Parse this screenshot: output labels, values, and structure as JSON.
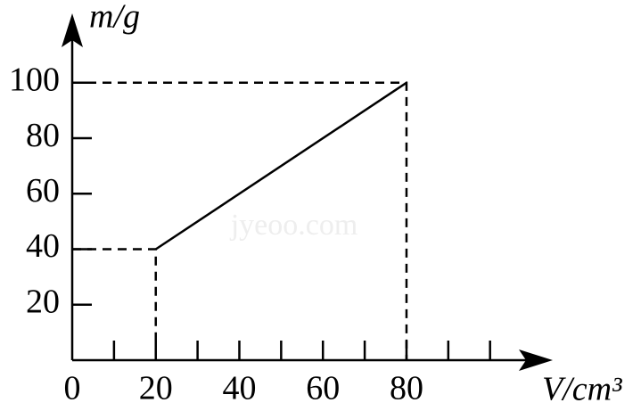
{
  "chart_data": {
    "type": "line",
    "xlabel": "V/cm³",
    "ylabel": "m/g",
    "watermark": "jyeoo.com",
    "x": [
      20,
      80
    ],
    "series": [
      {
        "name": "m",
        "color": "#000000",
        "values": [
          40,
          100
        ]
      }
    ],
    "xlim": [
      0,
      115
    ],
    "ylim": [
      0,
      125
    ],
    "xticks": [
      0,
      20,
      40,
      60,
      80
    ],
    "xminorticks": [
      10,
      30,
      50,
      70,
      90,
      100
    ],
    "yticks": [
      20,
      40,
      60,
      80,
      100
    ],
    "guides": true
  }
}
